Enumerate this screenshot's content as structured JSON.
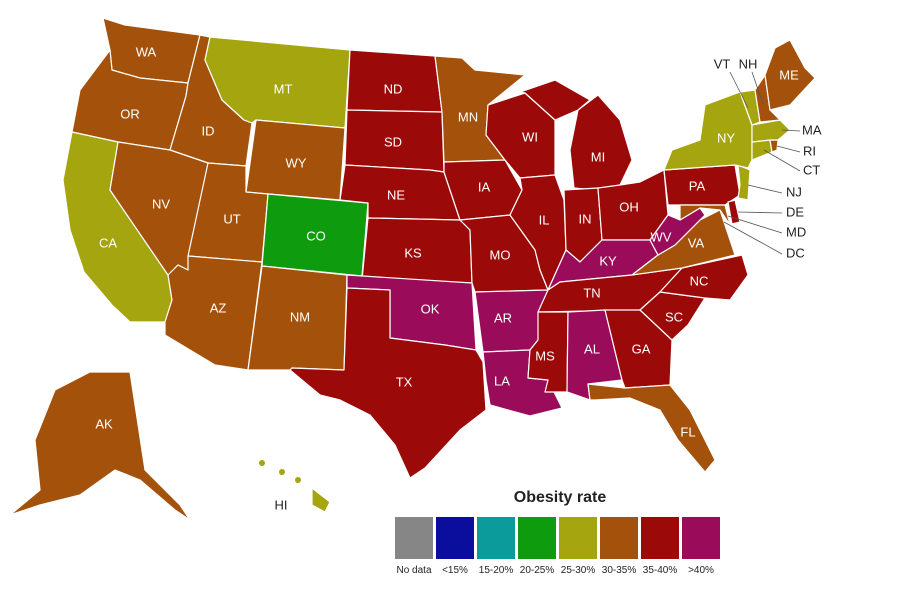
{
  "legend": {
    "title": "Obesity rate",
    "categories": [
      {
        "key": "nodata",
        "label": "No data",
        "color": "#868686"
      },
      {
        "key": "lt15",
        "label": "<15%",
        "color": "#0b0d9c"
      },
      {
        "key": "15_20",
        "label": "15-20%",
        "color": "#0c9b9b"
      },
      {
        "key": "20_25",
        "label": "20-25%",
        "color": "#0e9c0e"
      },
      {
        "key": "25_30",
        "label": "25-30%",
        "color": "#a4a50f"
      },
      {
        "key": "30_35",
        "label": "30-35%",
        "color": "#a4520b"
      },
      {
        "key": "35_40",
        "label": "35-40%",
        "color": "#9c0909"
      },
      {
        "key": "gt40",
        "label": ">40%",
        "color": "#9a0c5a"
      }
    ]
  },
  "states": {
    "WA": {
      "label": "WA",
      "category": "30_35"
    },
    "OR": {
      "label": "OR",
      "category": "30_35"
    },
    "CA": {
      "label": "CA",
      "category": "25_30"
    },
    "ID": {
      "label": "ID",
      "category": "30_35"
    },
    "NV": {
      "label": "NV",
      "category": "30_35"
    },
    "MT": {
      "label": "MT",
      "category": "25_30"
    },
    "WY": {
      "label": "WY",
      "category": "30_35"
    },
    "UT": {
      "label": "UT",
      "category": "30_35"
    },
    "AZ": {
      "label": "AZ",
      "category": "30_35"
    },
    "CO": {
      "label": "CO",
      "category": "20_25"
    },
    "NM": {
      "label": "NM",
      "category": "30_35"
    },
    "ND": {
      "label": "ND",
      "category": "35_40"
    },
    "SD": {
      "label": "SD",
      "category": "35_40"
    },
    "NE": {
      "label": "NE",
      "category": "35_40"
    },
    "KS": {
      "label": "KS",
      "category": "35_40"
    },
    "OK": {
      "label": "OK",
      "category": "gt40"
    },
    "TX": {
      "label": "TX",
      "category": "35_40"
    },
    "MN": {
      "label": "MN",
      "category": "30_35"
    },
    "IA": {
      "label": "IA",
      "category": "35_40"
    },
    "MO": {
      "label": "MO",
      "category": "35_40"
    },
    "AR": {
      "label": "AR",
      "category": "gt40"
    },
    "LA": {
      "label": "LA",
      "category": "gt40"
    },
    "WI": {
      "label": "WI",
      "category": "35_40"
    },
    "IL": {
      "label": "IL",
      "category": "35_40"
    },
    "MI": {
      "label": "MI",
      "category": "35_40"
    },
    "IN": {
      "label": "IN",
      "category": "35_40"
    },
    "OH": {
      "label": "OH",
      "category": "35_40"
    },
    "KY": {
      "label": "KY",
      "category": "gt40"
    },
    "TN": {
      "label": "TN",
      "category": "35_40"
    },
    "MS": {
      "label": "MS",
      "category": "35_40"
    },
    "AL": {
      "label": "AL",
      "category": "gt40"
    },
    "GA": {
      "label": "GA",
      "category": "35_40"
    },
    "FL": {
      "label": "FL",
      "category": "30_35"
    },
    "SC": {
      "label": "SC",
      "category": "35_40"
    },
    "NC": {
      "label": "NC",
      "category": "35_40"
    },
    "VA": {
      "label": "VA",
      "category": "30_35"
    },
    "WV": {
      "label": "WV",
      "category": "gt40"
    },
    "PA": {
      "label": "PA",
      "category": "35_40"
    },
    "NY": {
      "label": "NY",
      "category": "25_30"
    },
    "VT": {
      "label": "VT",
      "category": "25_30"
    },
    "NH": {
      "label": "NH",
      "category": "30_35"
    },
    "ME": {
      "label": "ME",
      "category": "30_35"
    },
    "MA": {
      "label": "MA",
      "category": "25_30"
    },
    "RI": {
      "label": "RI",
      "category": "30_35"
    },
    "CT": {
      "label": "CT",
      "category": "25_30"
    },
    "NJ": {
      "label": "NJ",
      "category": "25_30"
    },
    "DE": {
      "label": "DE",
      "category": "35_40"
    },
    "MD": {
      "label": "MD",
      "category": "30_35"
    },
    "DC": {
      "label": "DC",
      "category": "25_30"
    },
    "AK": {
      "label": "AK",
      "category": "30_35"
    },
    "HI": {
      "label": "HI",
      "category": "25_30"
    }
  }
}
